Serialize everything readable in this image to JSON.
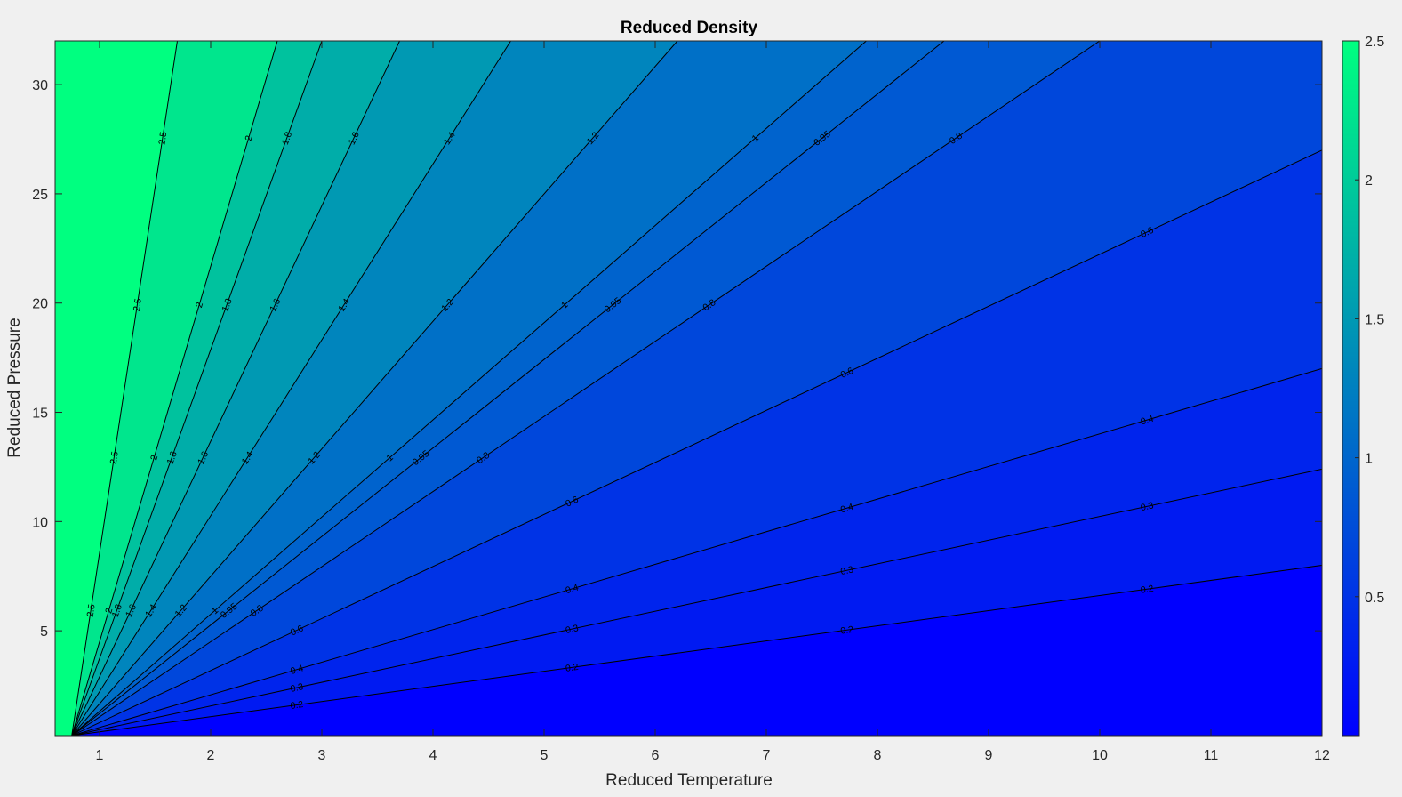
{
  "chart_data": {
    "type": "contourf",
    "title": "Reduced Density",
    "xlabel": "Reduced Temperature",
    "ylabel": "Reduced Pressure",
    "xlim": [
      0.6,
      12
    ],
    "ylim": [
      0.2,
      32
    ],
    "x_ticks": [
      1,
      2,
      3,
      4,
      5,
      6,
      7,
      8,
      9,
      10,
      11,
      12
    ],
    "y_ticks": [
      5,
      10,
      15,
      20,
      25,
      30
    ],
    "colorbar": {
      "position": "right",
      "ticks": [
        0.5,
        1,
        1.5,
        2,
        2.5
      ],
      "range": [
        0,
        2.5
      ],
      "colormap": "winter",
      "color_low": "#0000ff",
      "color_high": "#00ff80"
    },
    "contour_levels": [
      {
        "value": 0.2,
        "label": "0.2",
        "pressure_at_tr12": 8.0
      },
      {
        "value": 0.3,
        "label": "0.3",
        "pressure_at_tr12": 12.4
      },
      {
        "value": 0.4,
        "label": "0.4",
        "pressure_at_tr12": 17.0
      },
      {
        "value": 0.6,
        "label": "0.6",
        "pressure_at_tr12": 27.0
      },
      {
        "value": 0.8,
        "label": "0.8",
        "temperature_at_pr32": 10.0
      },
      {
        "value": 0.95,
        "label": "0.95",
        "temperature_at_pr32": 8.6
      },
      {
        "value": 1.0,
        "label": "1",
        "temperature_at_pr32": 7.9
      },
      {
        "value": 1.2,
        "label": "1.2",
        "temperature_at_pr32": 6.2
      },
      {
        "value": 1.4,
        "label": "1.4",
        "temperature_at_pr32": 4.7
      },
      {
        "value": 1.6,
        "label": "1.6",
        "temperature_at_pr32": 3.7
      },
      {
        "value": 1.8,
        "label": "1.8",
        "temperature_at_pr32": 3.0
      },
      {
        "value": 2.0,
        "label": "2",
        "temperature_at_pr32": 2.6
      },
      {
        "value": 2.5,
        "label": "2.5",
        "temperature_at_pr32": 1.7
      }
    ]
  }
}
